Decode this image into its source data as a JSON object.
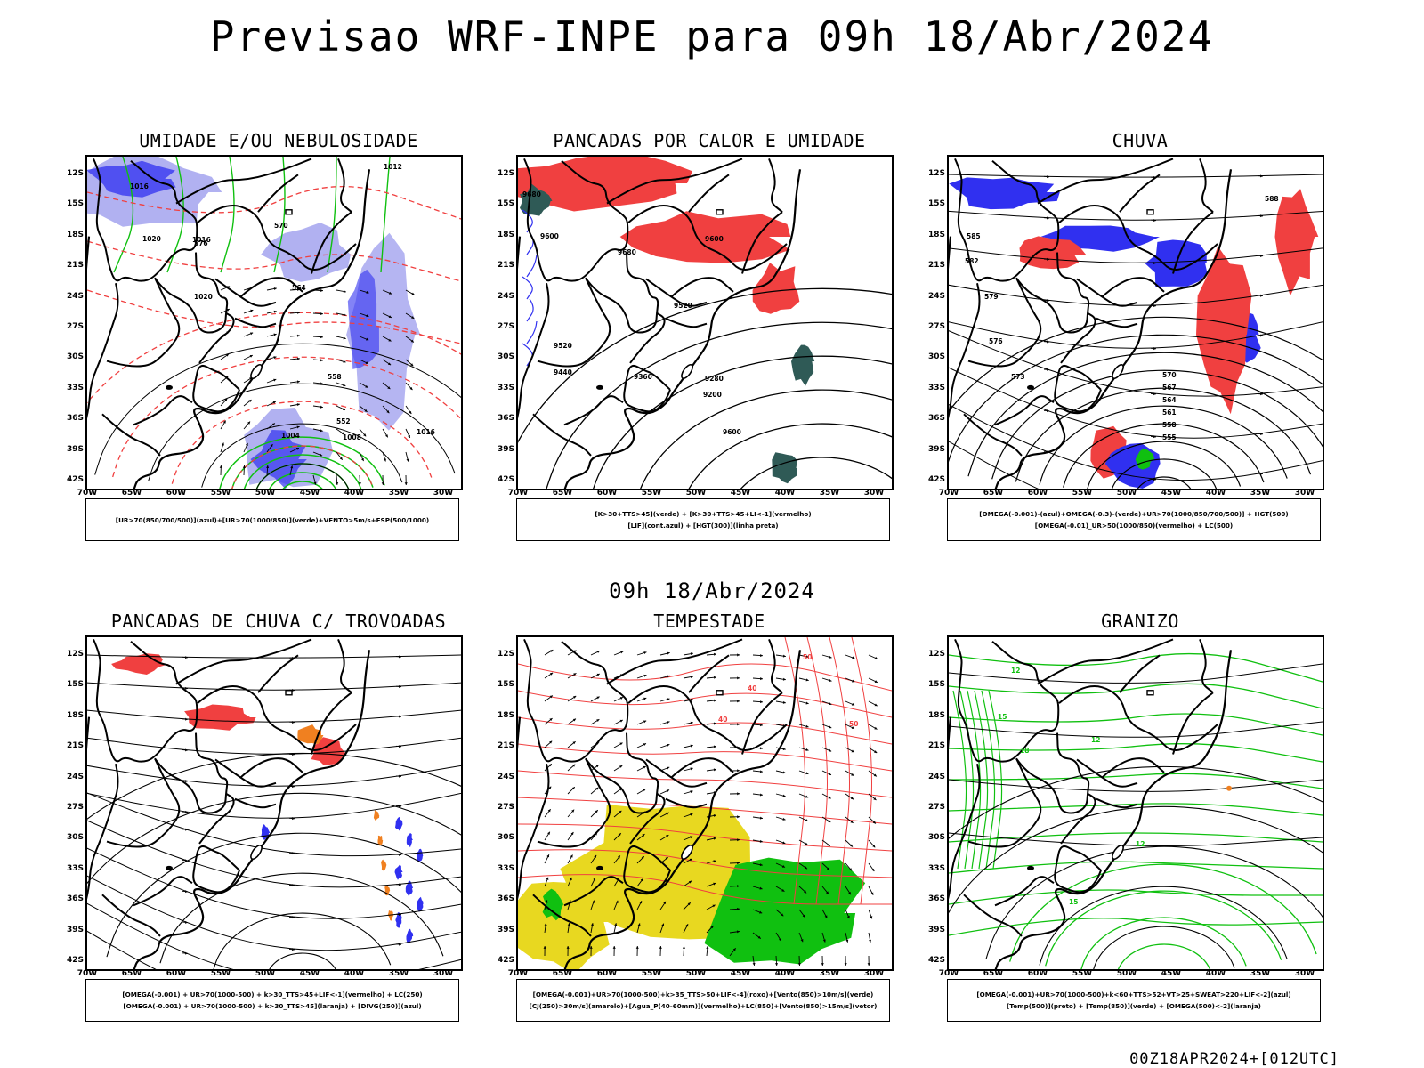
{
  "title": "Previsao WRF-INPE  para 09h 18/Abr/2024",
  "mid_title": "09h 18/Abr/2024",
  "footer": "00Z18APR2024+[012UTC]",
  "axis": {
    "lat_labels": [
      "12S",
      "15S",
      "18S",
      "21S",
      "24S",
      "27S",
      "30S",
      "33S",
      "36S",
      "39S",
      "42S"
    ],
    "lon_labels": [
      "70W",
      "65W",
      "60W",
      "55W",
      "50W",
      "45W",
      "40W",
      "35W",
      "30W"
    ]
  },
  "colors": {
    "blue": "#3030f0",
    "green": "#10c010",
    "red": "#f04040",
    "orange": "#f08020",
    "yellow": "#e8d820",
    "teal": "#2f5a56",
    "lavender": "#a8a8f0"
  },
  "panels": [
    {
      "title": "UMIDADE E/OU NEBULOSIDADE",
      "legend": [
        "[UR>70(850/700/500)](azul)+[UR>70(1000/850)](verde)+VENTO>5m/s+ESP(500/1000)"
      ],
      "labels": [
        "1016",
        "1020",
        "1016",
        "1020",
        "1012",
        "1004",
        "1008",
        "1016",
        "576",
        "570",
        "564",
        "558",
        "552"
      ]
    },
    {
      "title": "PANCADAS POR CALOR E UMIDADE",
      "legend": [
        "[K>30+TTS>45](verde) + [K>30+TTS>45+LI<-1](vermelho)",
        "[LIF](cont.azul) + [HGT(300)](linha preta)"
      ],
      "labels": [
        "9680",
        "9600",
        "9680",
        "9600",
        "9520",
        "9440",
        "9360",
        "9280",
        "9200",
        "9600",
        "9520"
      ]
    },
    {
      "title": "CHUVA",
      "legend": [
        "[OMEGA(-0.001)-(azul)+OMEGA(-0.3)-(verde)+UR>70(1000/850/700/500)] + HGT(500)",
        "[OMEGA(-0.01)_UR>50(1000/850)(vermelho) + LC(500)"
      ],
      "labels": [
        "588",
        "585",
        "582",
        "579",
        "576",
        "573",
        "570",
        "567",
        "564",
        "561",
        "558",
        "555"
      ]
    },
    {
      "title": "PANCADAS DE CHUVA C/ TROVOADAS",
      "legend": [
        "[OMEGA(-0.001) + UR>70(1000-500) + k>30_TTS>45+LIF<-1](vermelho) + LC(250)",
        "[OMEGA(-0.001) + UR>70(1000-500) + k>30_TTS>45](laranja) + [DIVG(250)](azul)"
      ],
      "labels": []
    },
    {
      "title": "TEMPESTADE",
      "legend": [
        "[OMEGA(-0.001)+UR>70(1000-500)+k>35_TTS>50+LIF<-4](roxo)+[Vento(850)>10m/s](verde)",
        "[CJ(250)>30m/s](amarelo)+[Agua_P(40-60mm)](vermelho)+LC(850)+[Vento(850)>15m/s](vetor)"
      ],
      "labels": [
        "40",
        "50",
        "40",
        "50"
      ]
    },
    {
      "title": "GRANIZO",
      "legend": [
        "[OMEGA(-0.001)+UR>70(1000-500)+k<60+TTS>52+VT>25+SWEAT>220+LIF<-2](azul)",
        "[Temp(500)](preto) + [Temp(850)](verde) + [OMEGA(500)<-2](laranja)"
      ],
      "labels": [
        "12",
        "15",
        "18",
        "12",
        "15",
        "12"
      ]
    }
  ]
}
